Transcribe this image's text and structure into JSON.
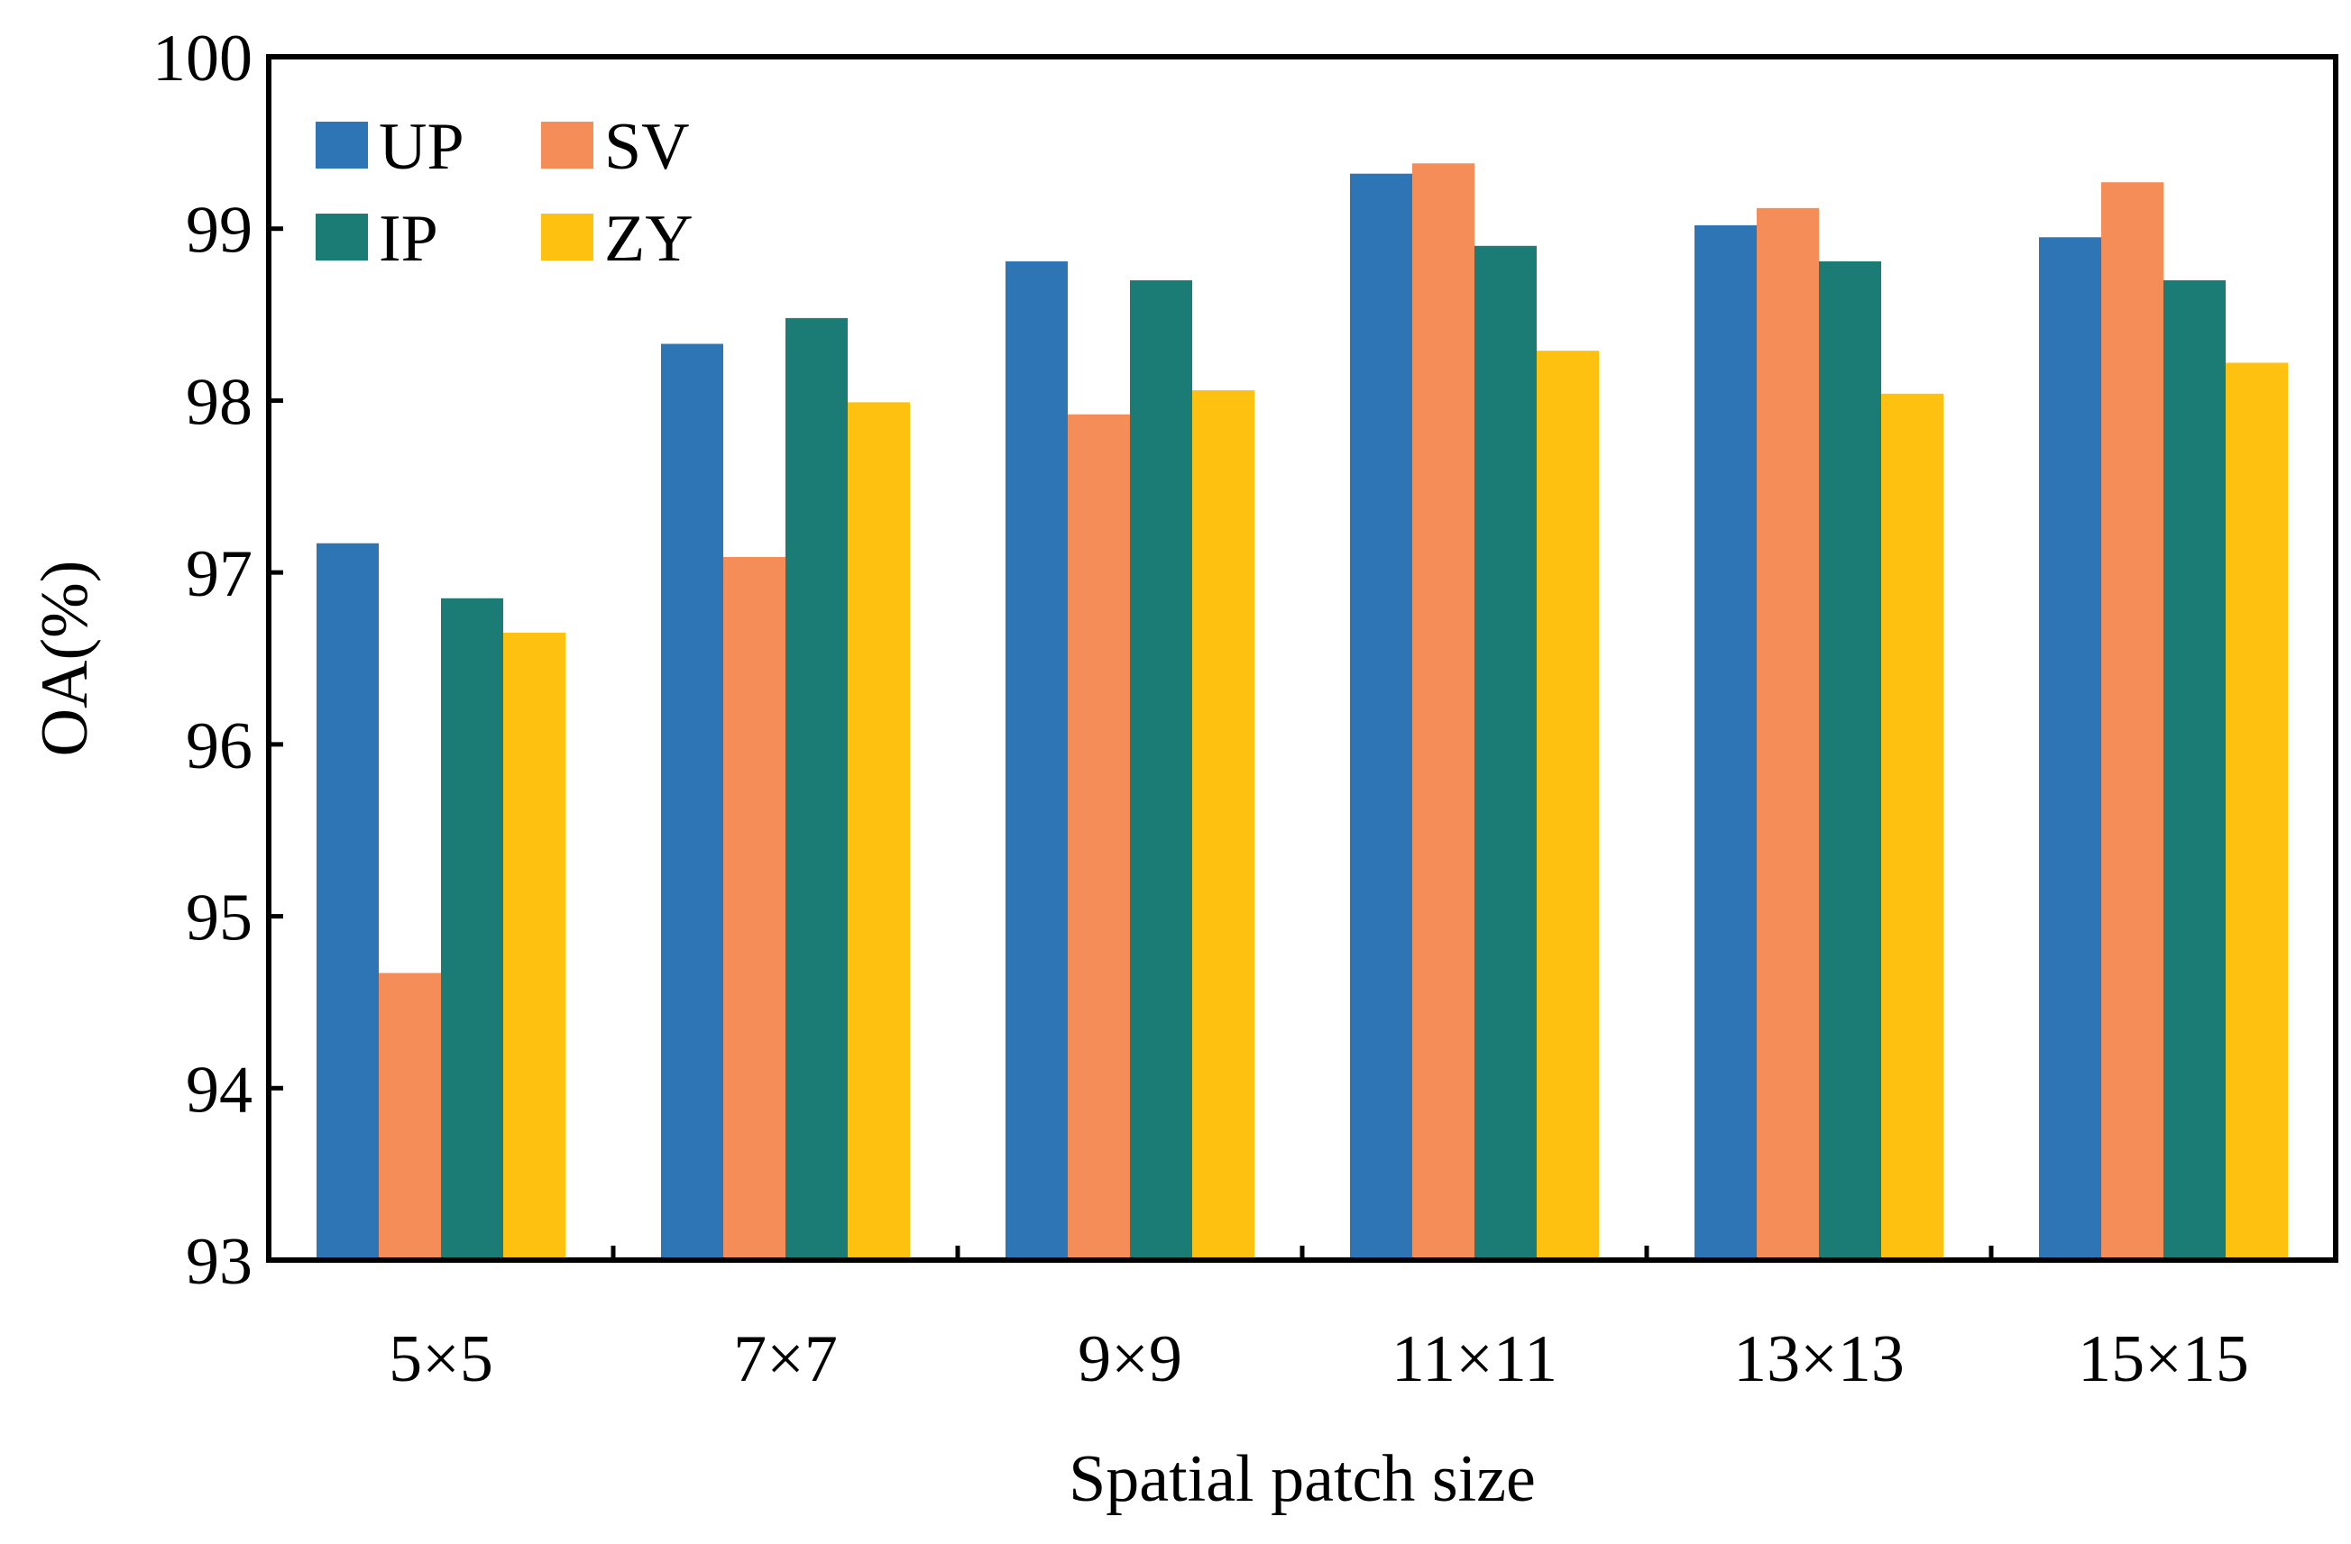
{
  "chart_data": {
    "type": "bar",
    "title": "",
    "xlabel": "Spatial patch size",
    "ylabel": "OA(%)",
    "ylim": [
      93,
      100
    ],
    "yticks": [
      "93",
      "94",
      "95",
      "96",
      "97",
      "98",
      "99",
      "100"
    ],
    "categories": [
      "5×5",
      "7×7",
      "9×9",
      "11×11",
      "13×13",
      "15×15"
    ],
    "legend_position": "top-left",
    "series": [
      {
        "name": "UP",
        "color": "#2E75B6",
        "values": [
          97.17,
          98.33,
          98.81,
          99.32,
          99.02,
          98.95
        ]
      },
      {
        "name": "SV",
        "color": "#F58D59",
        "values": [
          94.67,
          97.09,
          97.92,
          99.38,
          99.12,
          99.27
        ]
      },
      {
        "name": "IP",
        "color": "#1A7C74",
        "values": [
          96.85,
          98.48,
          98.7,
          98.9,
          98.81,
          98.7
        ]
      },
      {
        "name": "ZY",
        "color": "#FFC10F",
        "values": [
          96.65,
          97.99,
          98.06,
          98.29,
          98.04,
          98.22
        ]
      }
    ]
  }
}
